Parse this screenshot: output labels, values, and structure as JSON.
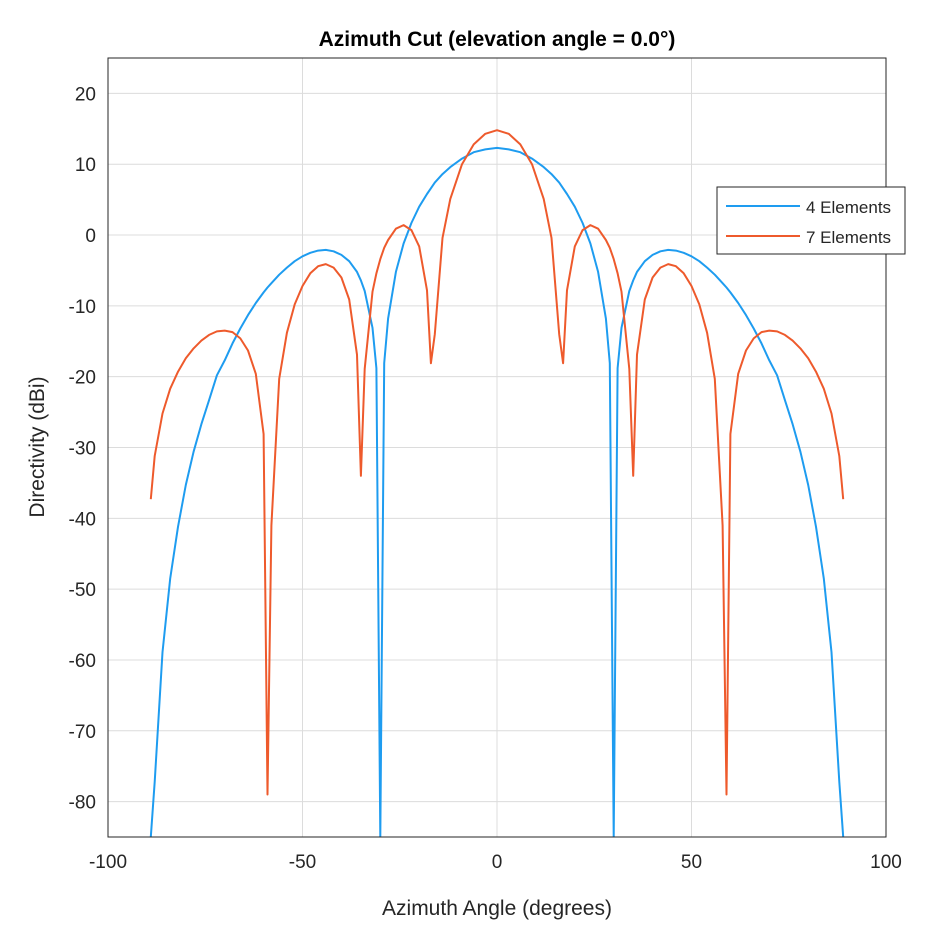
{
  "chart_data": {
    "type": "line",
    "title": "Azimuth Cut (elevation angle = 0.0°)",
    "xlabel": "Azimuth Angle (degrees)",
    "ylabel": "Directivity (dBi)",
    "xlim": [
      -100,
      100
    ],
    "ylim": [
      -85,
      25
    ],
    "xticks": [
      -100,
      -50,
      0,
      50,
      100
    ],
    "yticks": [
      -80,
      -70,
      -60,
      -50,
      -40,
      -30,
      -20,
      -10,
      0,
      10,
      20
    ],
    "grid": true,
    "legend_placement": "top-right",
    "x": [
      -89,
      -88,
      -86,
      -84,
      -82,
      -80,
      -78,
      -76,
      -74,
      -72,
      -70,
      -68,
      -66,
      -64,
      -62,
      -60,
      -59,
      -58,
      -56,
      -54,
      -52,
      -50,
      -48,
      -46,
      -44,
      -42,
      -40,
      -38,
      -36,
      -35,
      -34,
      -32,
      -31,
      -30,
      -29,
      -28,
      -26,
      -24,
      -22,
      -20,
      -18,
      -17,
      -16,
      -14,
      -12,
      -9,
      -6,
      -3,
      0,
      3,
      6,
      9,
      12,
      14,
      16,
      17,
      18,
      20,
      22,
      24,
      26,
      28,
      29,
      30,
      31,
      32,
      34,
      35,
      36,
      38,
      40,
      42,
      44,
      46,
      48,
      50,
      52,
      54,
      56,
      58,
      59,
      60,
      62,
      64,
      66,
      68,
      70,
      72,
      74,
      76,
      78,
      80,
      82,
      84,
      86,
      88,
      89
    ],
    "series": [
      {
        "name": "4 Elements",
        "color": "#1E9CF0",
        "values": [
          -85,
          -77.2,
          -58.9,
          -48.5,
          -41.2,
          -35.3,
          -30.6,
          -26.7,
          -23.3,
          -19.8,
          -17.7,
          -15.3,
          -13.2,
          -11.3,
          -9.6,
          -8.1,
          -7.4,
          -6.8,
          -5.6,
          -4.6,
          -3.7,
          -3.0,
          -2.5,
          -2.2,
          -2.1,
          -2.3,
          -2.8,
          -3.7,
          -5.2,
          -6.4,
          -7.9,
          -13.1,
          -18.8,
          -85,
          -18.1,
          -11.8,
          -5.2,
          -1.2,
          1.7,
          4.0,
          5.8,
          6.6,
          7.4,
          8.6,
          9.6,
          10.8,
          11.7,
          12.1,
          12.3,
          12.1,
          11.7,
          10.8,
          9.6,
          8.6,
          7.4,
          6.6,
          5.8,
          4.0,
          1.7,
          -1.2,
          -5.2,
          -11.8,
          -18.1,
          -85,
          -18.8,
          -13.1,
          -7.9,
          -6.4,
          -5.2,
          -3.7,
          -2.8,
          -2.3,
          -2.1,
          -2.2,
          -2.5,
          -3.0,
          -3.7,
          -4.6,
          -5.6,
          -6.8,
          -7.4,
          -8.1,
          -9.6,
          -11.3,
          -13.2,
          -15.3,
          -17.7,
          -19.8,
          -23.3,
          -26.7,
          -30.6,
          -35.3,
          -41.2,
          -48.5,
          -58.9,
          -77.2,
          -85
        ]
      },
      {
        "name": "7 Elements",
        "color": "#EE5A2C",
        "values": [
          -37.3,
          -31.2,
          -25.2,
          -21.7,
          -19.3,
          -17.4,
          -16.0,
          -14.9,
          -14.1,
          -13.6,
          -13.5,
          -13.7,
          -14.6,
          -16.3,
          -19.6,
          -28.1,
          -79.0,
          -41.0,
          -20.3,
          -13.8,
          -9.8,
          -7.2,
          -5.4,
          -4.4,
          -4.1,
          -4.6,
          -6.0,
          -9.1,
          -16.9,
          -34.0,
          -18.9,
          -8.0,
          -5.4,
          -3.4,
          -1.8,
          -0.7,
          0.9,
          1.4,
          0.7,
          -1.6,
          -7.8,
          -18.1,
          -14.0,
          -0.4,
          5.1,
          10.0,
          12.8,
          14.3,
          14.8,
          14.3,
          12.8,
          10.0,
          5.1,
          -0.4,
          -14.0,
          -18.1,
          -7.8,
          -1.6,
          0.7,
          1.4,
          0.9,
          -0.7,
          -1.8,
          -3.4,
          -5.4,
          -8.0,
          -18.9,
          -34.0,
          -16.9,
          -9.1,
          -6.0,
          -4.6,
          -4.1,
          -4.4,
          -5.4,
          -7.2,
          -9.8,
          -13.8,
          -20.3,
          -41.0,
          -79.0,
          -28.1,
          -19.6,
          -16.3,
          -14.6,
          -13.7,
          -13.5,
          -13.6,
          -14.1,
          -14.9,
          -16.0,
          -17.4,
          -19.3,
          -21.7,
          -25.2,
          -31.2,
          -37.3
        ]
      }
    ]
  }
}
